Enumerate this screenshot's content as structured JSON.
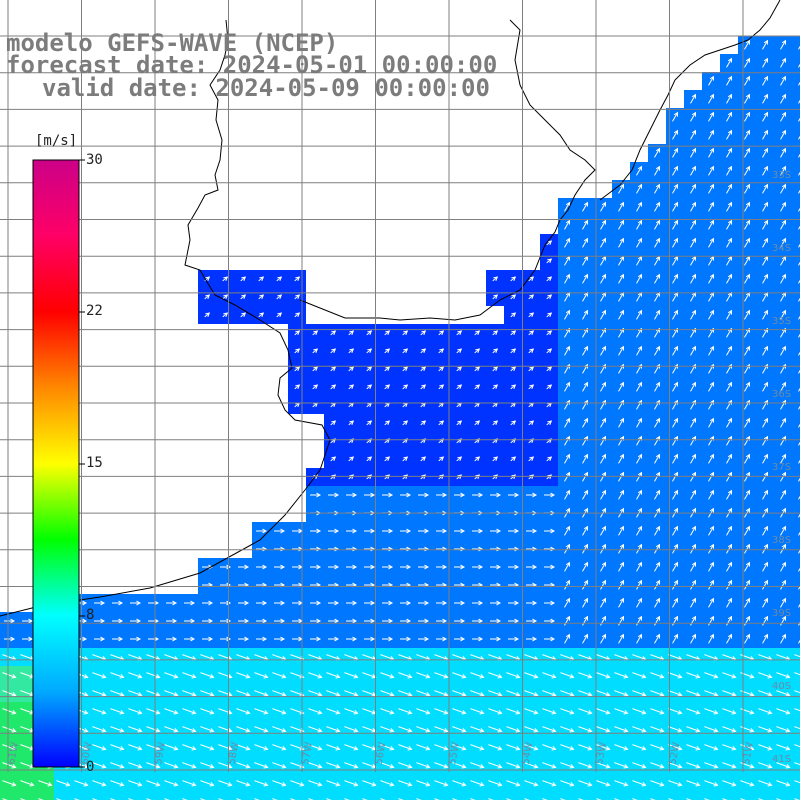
{
  "title": {
    "line1": "modelo GEFS-WAVE (NCEP)",
    "line2": "forecast date: 2024-05-01 00:00:00",
    "line3": "valid date: 2024-05-09 00:00:00"
  },
  "colorbar": {
    "unit": "[m/s]",
    "ticks": [
      "30",
      "22",
      "15",
      "8",
      "0"
    ],
    "min": 0,
    "max": 30,
    "colors": [
      "#0000ff",
      "#00aaff",
      "#00ffff",
      "#00ff00",
      "#ffff00",
      "#ff8800",
      "#ff0000",
      "#ff0066",
      "#cc0088"
    ]
  },
  "grid": {
    "lat_labels": [
      "33S",
      "34S",
      "35S",
      "36S",
      "37S",
      "38S",
      "39S",
      "40S",
      "41S"
    ],
    "lon_labels": [
      "61W",
      "60W",
      "59W",
      "58W",
      "57W",
      "56W",
      "55W",
      "54W",
      "53W",
      "52W",
      "51W"
    ]
  },
  "field": {
    "description_colors": {
      "land": "#ffffff",
      "calm": "#0033ff",
      "moderate": "#0077ff",
      "strong": "#00ddff"
    }
  }
}
